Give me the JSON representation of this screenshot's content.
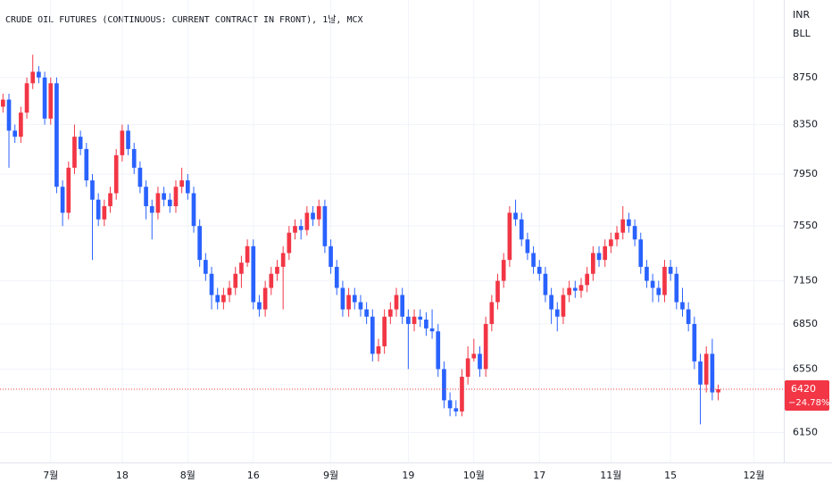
{
  "chart_data": {
    "type": "candlestick",
    "title": "CRUDE OIL FUTURES (CONTINUOUS: CURRENT CONTRACT IN FRONT), 1날, MCX",
    "currency": "INR",
    "unit": "BLL",
    "log_scale": true,
    "grid": true,
    "up_color": "#f23645",
    "down_color": "#2962ff",
    "last_price": 6420,
    "change": "−24.78%",
    "ylim": [
      5970,
      9450
    ],
    "yticks": [
      6150,
      6550,
      6850,
      7150,
      7550,
      7950,
      8350,
      8750
    ],
    "xlim": [
      -0.5,
      131
    ],
    "xticks": [
      {
        "value": 8,
        "label": "7월"
      },
      {
        "value": 20,
        "label": "18"
      },
      {
        "value": 31,
        "label": "8월"
      },
      {
        "value": 42,
        "label": "16"
      },
      {
        "value": 55,
        "label": "9월"
      },
      {
        "value": 68,
        "label": "19"
      },
      {
        "value": 79,
        "label": "10월"
      },
      {
        "value": 90,
        "label": "17"
      },
      {
        "value": 102,
        "label": "11월"
      },
      {
        "value": 112,
        "label": "15"
      },
      {
        "value": 126,
        "label": "12월"
      }
    ],
    "open": [
      8500,
      8560,
      8300,
      8250,
      8450,
      8700,
      8800,
      8750,
      8400,
      8700,
      7850,
      7650,
      8000,
      8250,
      8150,
      7900,
      7750,
      7600,
      7700,
      7800,
      8100,
      8300,
      8150,
      8000,
      7850,
      7700,
      7650,
      7800,
      7750,
      7700,
      7850,
      7900,
      7800,
      7550,
      7300,
      7200,
      7050,
      7000,
      7050,
      7100,
      7200,
      7280,
      7400,
      7000,
      6950,
      7100,
      7200,
      7250,
      7350,
      7500,
      7550,
      7520,
      7650,
      7600,
      7700,
      7400,
      7250,
      7100,
      6950,
      7050,
      7000,
      6950,
      6900,
      6650,
      6700,
      6900,
      6950,
      7050,
      6900,
      6850,
      6900,
      6880,
      6820,
      6800,
      6550,
      6350,
      6300,
      6280,
      6500,
      6620,
      6650,
      6550,
      6850,
      7000,
      7150,
      7300,
      7650,
      7600,
      7450,
      7350,
      7250,
      7200,
      7050,
      6950,
      6900,
      7050,
      7100,
      7080,
      7120,
      7200,
      7350,
      7300,
      7400,
      7450,
      7500,
      7600,
      7550,
      7450,
      7250,
      7150,
      7100,
      7050,
      7250,
      7200,
      7000,
      6950,
      6850,
      6600,
      6450,
      6650,
      6400
    ],
    "high": [
      8610,
      8610,
      8350,
      8500,
      8750,
      8950,
      8850,
      8800,
      8750,
      8750,
      7900,
      8050,
      8350,
      8300,
      8200,
      7950,
      7800,
      7750,
      7850,
      8150,
      8350,
      8350,
      8200,
      8050,
      7900,
      7750,
      7850,
      7850,
      7800,
      7900,
      8000,
      7950,
      7850,
      7600,
      7350,
      7250,
      7100,
      7100,
      7150,
      7250,
      7330,
      7450,
      7450,
      7050,
      7150,
      7250,
      7300,
      7400,
      7550,
      7600,
      7600,
      7700,
      7700,
      7750,
      7750,
      7450,
      7300,
      7150,
      7100,
      7100,
      7050,
      7000,
      6950,
      6750,
      6950,
      7000,
      7100,
      7100,
      6950,
      6950,
      6950,
      6930,
      6950,
      6850,
      6600,
      6400,
      6350,
      6550,
      6700,
      6750,
      6700,
      6900,
      7050,
      7200,
      7350,
      7700,
      7750,
      7650,
      7500,
      7400,
      7300,
      7250,
      7100,
      7000,
      7100,
      7150,
      7150,
      7170,
      7250,
      7400,
      7400,
      7450,
      7500,
      7550,
      7700,
      7650,
      7600,
      7500,
      7300,
      7200,
      7150,
      7300,
      7300,
      7250,
      7100,
      7000,
      6900,
      6650,
      6700,
      6750,
      6450
    ],
    "low": [
      8450,
      8000,
      8200,
      8200,
      8400,
      8650,
      8700,
      8350,
      8350,
      7800,
      7550,
      7600,
      7950,
      8100,
      7850,
      7300,
      7550,
      7550,
      7650,
      7750,
      8050,
      8100,
      7950,
      7800,
      7600,
      7450,
      7600,
      7700,
      7650,
      7650,
      7800,
      7750,
      7500,
      7250,
      7150,
      6950,
      6950,
      6950,
      7000,
      7050,
      7100,
      7250,
      6950,
      6900,
      6900,
      7050,
      7150,
      6950,
      7300,
      7450,
      7450,
      7480,
      7550,
      7550,
      7350,
      7200,
      7050,
      6900,
      6900,
      6950,
      6900,
      6850,
      6600,
      6600,
      6650,
      6850,
      6900,
      6850,
      6550,
      6800,
      6830,
      6770,
      6750,
      6500,
      6300,
      6250,
      6250,
      6250,
      6450,
      6600,
      6500,
      6500,
      6800,
      6950,
      7100,
      7250,
      7550,
      7400,
      7300,
      7200,
      7150,
      7000,
      6850,
      6800,
      6850,
      7000,
      7030,
      7030,
      7070,
      7150,
      7250,
      7250,
      7350,
      7400,
      7450,
      7500,
      7400,
      7200,
      7100,
      7000,
      7000,
      7000,
      7150,
      6950,
      6900,
      6800,
      6550,
      6200,
      6400,
      6350,
      6350
    ],
    "close": [
      8560,
      8300,
      8250,
      8450,
      8700,
      8800,
      8750,
      8400,
      8700,
      7850,
      7650,
      8000,
      8250,
      8150,
      7900,
      7750,
      7600,
      7700,
      7800,
      8100,
      8300,
      8150,
      8000,
      7850,
      7700,
      7650,
      7800,
      7750,
      7700,
      7850,
      7900,
      7800,
      7550,
      7300,
      7200,
      7050,
      7000,
      7050,
      7100,
      7200,
      7280,
      7400,
      7000,
      6950,
      7100,
      7200,
      7250,
      7350,
      7500,
      7550,
      7520,
      7650,
      7600,
      7700,
      7400,
      7250,
      7100,
      6950,
      7050,
      7000,
      6950,
      6900,
      6650,
      6700,
      6900,
      6950,
      7050,
      6900,
      6850,
      6900,
      6880,
      6820,
      6800,
      6550,
      6350,
      6300,
      6280,
      6500,
      6620,
      6650,
      6550,
      6850,
      7000,
      7150,
      7300,
      7650,
      7600,
      7450,
      7350,
      7250,
      7200,
      7050,
      6950,
      6900,
      7050,
      7100,
      7080,
      7120,
      7200,
      7350,
      7300,
      7400,
      7450,
      7500,
      7600,
      7550,
      7450,
      7250,
      7150,
      7100,
      7050,
      7250,
      7200,
      7000,
      6950,
      6850,
      6600,
      6450,
      6650,
      6400,
      6420
    ]
  }
}
